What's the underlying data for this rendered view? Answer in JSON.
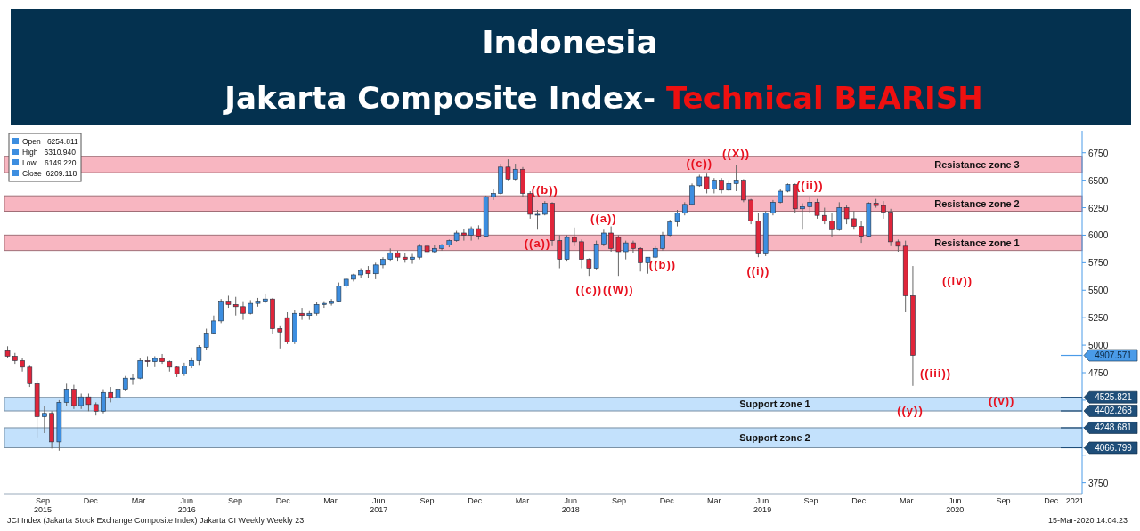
{
  "chart_data": {
    "type": "candlestick",
    "title": "Indonesia",
    "subtitle": "Jakarta Composite Index- Technical BEARISH",
    "x": [
      "2015-06-26",
      "2015-07-10",
      "2015-07-24",
      "2015-08-07",
      "2015-08-21",
      "2015-09-04",
      "2015-09-18",
      "2015-10-02",
      "2015-10-16",
      "2015-10-30",
      "2015-11-13",
      "2015-11-27",
      "2015-12-11",
      "2015-12-25",
      "2016-01-08",
      "2016-01-22",
      "2016-02-05",
      "2016-02-19",
      "2016-03-04",
      "2016-03-18",
      "2016-04-01",
      "2016-04-15",
      "2016-04-29",
      "2016-05-13",
      "2016-05-27",
      "2016-06-10",
      "2016-06-24",
      "2016-07-08",
      "2016-07-22",
      "2016-08-05",
      "2016-08-19",
      "2016-09-02",
      "2016-09-16",
      "2016-09-30",
      "2016-10-14",
      "2016-10-28",
      "2016-11-11",
      "2016-11-25",
      "2016-12-09",
      "2016-12-23",
      "2017-01-06",
      "2017-01-20",
      "2017-02-03",
      "2017-02-17",
      "2017-03-03",
      "2017-03-17",
      "2017-03-31",
      "2017-04-14",
      "2017-04-28",
      "2017-05-12",
      "2017-05-26",
      "2017-06-09",
      "2017-06-23",
      "2017-07-07",
      "2017-07-21",
      "2017-08-04",
      "2017-08-18",
      "2017-09-01",
      "2017-09-15",
      "2017-09-29",
      "2017-10-13",
      "2017-10-27",
      "2017-11-10",
      "2017-11-24",
      "2017-12-08",
      "2017-12-22",
      "2018-01-05",
      "2018-01-19",
      "2018-02-02",
      "2018-02-16",
      "2018-03-02",
      "2018-03-16",
      "2018-03-30",
      "2018-04-13",
      "2018-04-27",
      "2018-05-11",
      "2018-05-25",
      "2018-06-08",
      "2018-06-22",
      "2018-07-06",
      "2018-07-20",
      "2018-08-03",
      "2018-08-17",
      "2018-08-31",
      "2018-09-14",
      "2018-09-28",
      "2018-10-12",
      "2018-10-26",
      "2018-11-09",
      "2018-11-23",
      "2018-12-07",
      "2018-12-21",
      "2019-01-04",
      "2019-01-18",
      "2019-02-01",
      "2019-02-15",
      "2019-03-01",
      "2019-03-15",
      "2019-03-29",
      "2019-04-12",
      "2019-04-26",
      "2019-05-10",
      "2019-05-24",
      "2019-06-07",
      "2019-06-21",
      "2019-07-05",
      "2019-07-19",
      "2019-08-02",
      "2019-08-16",
      "2019-08-30",
      "2019-09-13",
      "2019-09-27",
      "2019-10-11",
      "2019-10-25",
      "2019-11-08",
      "2019-11-22",
      "2019-12-06",
      "2019-12-20",
      "2020-01-03",
      "2020-01-17",
      "2020-01-31",
      "2020-02-14",
      "2020-02-28",
      "2020-03-13"
    ],
    "ohlc": [
      [
        4950,
        4990,
        4880,
        4900
      ],
      [
        4900,
        4930,
        4830,
        4860
      ],
      [
        4860,
        4880,
        4760,
        4800
      ],
      [
        4800,
        4820,
        4620,
        4650
      ],
      [
        4650,
        4680,
        4160,
        4350
      ],
      [
        4350,
        4450,
        4200,
        4380
      ],
      [
        4380,
        4400,
        4060,
        4120
      ],
      [
        4120,
        4500,
        4040,
        4480
      ],
      [
        4480,
        4650,
        4450,
        4600
      ],
      [
        4600,
        4640,
        4420,
        4450
      ],
      [
        4450,
        4560,
        4420,
        4530
      ],
      [
        4530,
        4560,
        4400,
        4460
      ],
      [
        4460,
        4480,
        4360,
        4400
      ],
      [
        4400,
        4600,
        4380,
        4570
      ],
      [
        4570,
        4620,
        4480,
        4520
      ],
      [
        4520,
        4620,
        4490,
        4600
      ],
      [
        4600,
        4720,
        4580,
        4700
      ],
      [
        4700,
        4740,
        4640,
        4700
      ],
      [
        4700,
        4880,
        4690,
        4860
      ],
      [
        4860,
        4900,
        4800,
        4850
      ],
      [
        4850,
        4900,
        4800,
        4880
      ],
      [
        4880,
        4920,
        4830,
        4850
      ],
      [
        4850,
        4860,
        4760,
        4800
      ],
      [
        4800,
        4810,
        4710,
        4740
      ],
      [
        4740,
        4840,
        4720,
        4810
      ],
      [
        4810,
        4890,
        4790,
        4860
      ],
      [
        4860,
        5000,
        4820,
        4980
      ],
      [
        4980,
        5150,
        4960,
        5110
      ],
      [
        5110,
        5270,
        5100,
        5220
      ],
      [
        5220,
        5420,
        5200,
        5400
      ],
      [
        5400,
        5450,
        5340,
        5370
      ],
      [
        5370,
        5440,
        5270,
        5350
      ],
      [
        5350,
        5400,
        5230,
        5290
      ],
      [
        5290,
        5410,
        5280,
        5380
      ],
      [
        5380,
        5430,
        5350,
        5400
      ],
      [
        5400,
        5470,
        5380,
        5420
      ],
      [
        5420,
        5430,
        5100,
        5150
      ],
      [
        5150,
        5180,
        4970,
        5120
      ],
      [
        5250,
        5300,
        5010,
        5030
      ],
      [
        5030,
        5320,
        5010,
        5290
      ],
      [
        5290,
        5340,
        5230,
        5270
      ],
      [
        5270,
        5310,
        5230,
        5290
      ],
      [
        5290,
        5390,
        5270,
        5370
      ],
      [
        5370,
        5400,
        5340,
        5380
      ],
      [
        5380,
        5420,
        5360,
        5400
      ],
      [
        5400,
        5570,
        5390,
        5540
      ],
      [
        5540,
        5610,
        5520,
        5600
      ],
      [
        5600,
        5650,
        5580,
        5640
      ],
      [
        5640,
        5700,
        5610,
        5680
      ],
      [
        5680,
        5720,
        5610,
        5650
      ],
      [
        5650,
        5750,
        5600,
        5730
      ],
      [
        5730,
        5800,
        5700,
        5780
      ],
      [
        5780,
        5880,
        5760,
        5840
      ],
      [
        5840,
        5860,
        5760,
        5800
      ],
      [
        5800,
        5840,
        5750,
        5780
      ],
      [
        5780,
        5830,
        5740,
        5800
      ],
      [
        5800,
        5920,
        5780,
        5900
      ],
      [
        5900,
        5920,
        5820,
        5850
      ],
      [
        5850,
        5910,
        5840,
        5880
      ],
      [
        5880,
        5920,
        5860,
        5910
      ],
      [
        5910,
        5960,
        5890,
        5950
      ],
      [
        5950,
        6040,
        5940,
        6020
      ],
      [
        6020,
        6060,
        5950,
        6000
      ],
      [
        6000,
        6080,
        5950,
        6060
      ],
      [
        6060,
        6090,
        5960,
        5990
      ],
      [
        5990,
        6360,
        5990,
        6350
      ],
      [
        6350,
        6420,
        6320,
        6380
      ],
      [
        6380,
        6650,
        6370,
        6620
      ],
      [
        6620,
        6690,
        6500,
        6510
      ],
      [
        6510,
        6650,
        6500,
        6600
      ],
      [
        6600,
        6620,
        6350,
        6380
      ],
      [
        6380,
        6400,
        6150,
        6190
      ],
      [
        6190,
        6230,
        6050,
        6190
      ],
      [
        6190,
        6310,
        6180,
        6290
      ],
      [
        6290,
        6300,
        5900,
        5950
      ],
      [
        5950,
        6000,
        5700,
        5780
      ],
      [
        5780,
        6000,
        5760,
        5980
      ],
      [
        5980,
        6070,
        5900,
        5940
      ],
      [
        5940,
        5960,
        5700,
        5780
      ],
      [
        5780,
        5790,
        5630,
        5700
      ],
      [
        5700,
        5950,
        5690,
        5920
      ],
      [
        5920,
        6050,
        5900,
        6020
      ],
      [
        6020,
        6080,
        5850,
        5880
      ],
      [
        5980,
        6000,
        5630,
        5850
      ],
      [
        5850,
        5950,
        5780,
        5930
      ],
      [
        5930,
        5950,
        5840,
        5880
      ],
      [
        5880,
        5890,
        5670,
        5750
      ],
      [
        5750,
        5800,
        5650,
        5800
      ],
      [
        5800,
        5900,
        5790,
        5880
      ],
      [
        5880,
        6030,
        5860,
        6000
      ],
      [
        6000,
        6140,
        5990,
        6120
      ],
      [
        6120,
        6230,
        6080,
        6200
      ],
      [
        6200,
        6300,
        6180,
        6280
      ],
      [
        6280,
        6470,
        6270,
        6450
      ],
      [
        6450,
        6550,
        6440,
        6530
      ],
      [
        6530,
        6560,
        6380,
        6420
      ],
      [
        6420,
        6520,
        6380,
        6500
      ],
      [
        6500,
        6520,
        6380,
        6410
      ],
      [
        6410,
        6500,
        6400,
        6470
      ],
      [
        6470,
        6640,
        6400,
        6500
      ],
      [
        6500,
        6510,
        6300,
        6320
      ],
      [
        6320,
        6330,
        6100,
        6130
      ],
      [
        6130,
        6200,
        5800,
        5830
      ],
      [
        5830,
        6220,
        5810,
        6200
      ],
      [
        6200,
        6320,
        6180,
        6300
      ],
      [
        6300,
        6420,
        6290,
        6400
      ],
      [
        6400,
        6470,
        6390,
        6460
      ],
      [
        6460,
        6470,
        6200,
        6240
      ],
      [
        6240,
        6290,
        6050,
        6260
      ],
      [
        6260,
        6350,
        6200,
        6300
      ],
      [
        6300,
        6330,
        6150,
        6180
      ],
      [
        6180,
        6250,
        6100,
        6130
      ],
      [
        6130,
        6200,
        5980,
        6050
      ],
      [
        6050,
        6300,
        6040,
        6250
      ],
      [
        6250,
        6270,
        6100,
        6150
      ],
      [
        6150,
        6220,
        6050,
        6080
      ],
      [
        6080,
        6130,
        5930,
        5990
      ],
      [
        5990,
        6300,
        5980,
        6290
      ],
      [
        6290,
        6330,
        6250,
        6270
      ],
      [
        6270,
        6310,
        6150,
        6210
      ],
      [
        6210,
        6240,
        5900,
        5940
      ],
      [
        5940,
        5960,
        5850,
        5900
      ],
      [
        5900,
        5950,
        5300,
        5450
      ],
      [
        5450,
        5720,
        4630,
        4907.571
      ]
    ],
    "xlim": [
      "2015-06-20",
      "2021-01-29"
    ],
    "xticks": [
      {
        "value": "2015-09-01",
        "label": "Sep\n2015"
      },
      {
        "value": "2015-12-01",
        "label": "Dec"
      },
      {
        "value": "2016-03-01",
        "label": "Mar"
      },
      {
        "value": "2016-06-01",
        "label": "Jun\n2016"
      },
      {
        "value": "2016-09-01",
        "label": "Sep"
      },
      {
        "value": "2016-12-01",
        "label": "Dec"
      },
      {
        "value": "2017-03-01",
        "label": "Mar"
      },
      {
        "value": "2017-06-01",
        "label": "Jun\n2017"
      },
      {
        "value": "2017-09-01",
        "label": "Sep"
      },
      {
        "value": "2017-12-01",
        "label": "Dec"
      },
      {
        "value": "2018-03-01",
        "label": "Mar"
      },
      {
        "value": "2018-06-01",
        "label": "Jun\n2018"
      },
      {
        "value": "2018-09-01",
        "label": "Sep"
      },
      {
        "value": "2018-12-01",
        "label": "Dec"
      },
      {
        "value": "2019-03-01",
        "label": "Mar"
      },
      {
        "value": "2019-06-01",
        "label": "Jun\n2019"
      },
      {
        "value": "2019-09-01",
        "label": "Sep"
      },
      {
        "value": "2019-12-01",
        "label": "Dec"
      },
      {
        "value": "2020-03-01",
        "label": "Mar"
      },
      {
        "value": "2020-06-01",
        "label": "Jun\n2020"
      },
      {
        "value": "2020-09-01",
        "label": "Sep"
      },
      {
        "value": "2020-12-01",
        "label": "Dec"
      },
      {
        "value": "2021-01-15",
        "label": "2021"
      }
    ],
    "ylim": [
      3650,
      6950
    ],
    "yticks": [
      3750,
      {
        "value": 4000,
        "label": null
      },
      {
        "value": 4250,
        "label": null
      },
      {
        "value": 4500,
        "label": null
      },
      4750,
      5000,
      5250,
      5500,
      5750,
      6000,
      6250,
      6500,
      6750
    ],
    "ref_lines": [
      {
        "axis": "y",
        "value": 4907.571,
        "label": "4907.571",
        "color": "#4a9be8"
      },
      {
        "axis": "y",
        "value": 4525.821,
        "label": "4525.821",
        "color": "#1f4e79"
      },
      {
        "axis": "y",
        "value": 4402.268,
        "label": "4402.268",
        "color": "#1f4e79"
      },
      {
        "axis": "y",
        "value": 4248.681,
        "label": "4248.681",
        "color": "#1f4e79"
      },
      {
        "axis": "y",
        "value": 4066.799,
        "label": "4066.799",
        "color": "#1f4e79"
      }
    ],
    "bands": [
      {
        "axis": "y",
        "from": 6569,
        "to": 6718,
        "label": "Resistance zone 3",
        "color": "#f7a9b6"
      },
      {
        "axis": "y",
        "from": 6218,
        "to": 6358,
        "label": "Resistance zone 2",
        "color": "#f7a9b6"
      },
      {
        "axis": "y",
        "from": 5861,
        "to": 6001,
        "label": "Resistance zone 1",
        "color": "#f7a9b6"
      },
      {
        "axis": "y",
        "from": 4402.268,
        "to": 4525.821,
        "label": "Support zone 1",
        "color": "#b8dcfb"
      },
      {
        "axis": "y",
        "from": 4066.799,
        "to": 4248.681,
        "label": "Support zone 2",
        "color": "#b8dcfb"
      }
    ],
    "annotations": [
      "Open   6254.811",
      "High   6310.940",
      "Low    6149.220",
      "Close  6209.118",
      "JCI Index (Jakarta Stock Exchange Composite Index) Jakarta CI Weekly  Weekly 23",
      "15-Mar-2020 14:04:23",
      "((iv))",
      {
        "text": "((a))",
        "x": "2018-03-30",
        "y": 6050
      },
      {
        "text": "((b))",
        "x": "2018-04-13",
        "y": 6310
      },
      {
        "text": "((c))",
        "x": "2018-07-06",
        "y": 5630
      },
      {
        "text": "((a))",
        "x": "2018-08-03",
        "y": 6050
      },
      {
        "text": "((W))",
        "x": "2018-08-31",
        "y": 5630
      },
      {
        "text": "((b))",
        "x": "2018-11-23",
        "y": 5860
      },
      {
        "text": "((c))",
        "x": "2019-02-01",
        "y": 6550
      },
      {
        "text": "((X))",
        "x": "2019-04-12",
        "y": 6640
      },
      {
        "text": "((i))",
        "x": "2019-05-24",
        "y": 5800
      },
      {
        "text": "((ii))",
        "x": "2019-08-30",
        "y": 6350
      },
      {
        "text": "((iii))",
        "x": "2020-03-13",
        "y": 4630
      },
      {
        "text": "((v))",
        "x": "2020-08-29",
        "y": 4490
      },
      {
        "text": "((y))",
        "x": "2020-03-08",
        "y": 4402.268
      }
    ]
  }
}
